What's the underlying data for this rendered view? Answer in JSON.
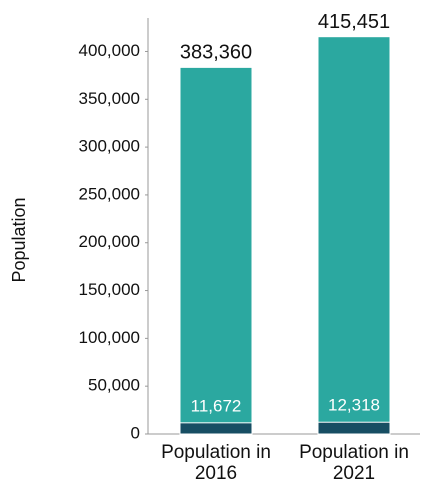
{
  "chart_data": {
    "type": "bar",
    "stacked": false,
    "y_label": "Population",
    "categories": [
      "Population in 2016",
      "Population in 2021"
    ],
    "series": [
      {
        "color": "#2ba8a0",
        "values": [
          383360,
          415451
        ],
        "value_labels": [
          "383,360",
          "415,451"
        ]
      },
      {
        "color": "#174e63",
        "values": [
          11672,
          12318
        ],
        "value_labels": [
          "11,672",
          "12,318"
        ]
      }
    ],
    "ylim": [
      0,
      435000
    ],
    "yticks": [
      0,
      {
        "value": 50000,
        "label": "50,000"
      },
      {
        "value": 100000,
        "label": "100,000"
      },
      {
        "value": 150000,
        "label": "150,000"
      },
      {
        "value": 200000,
        "label": "200,000"
      },
      {
        "value": 250000,
        "label": "250,000"
      },
      {
        "value": 300000,
        "label": "300,000"
      },
      {
        "value": 350000,
        "label": "350,000"
      },
      {
        "value": 400000,
        "label": "400,000"
      }
    ],
    "grid": false
  }
}
